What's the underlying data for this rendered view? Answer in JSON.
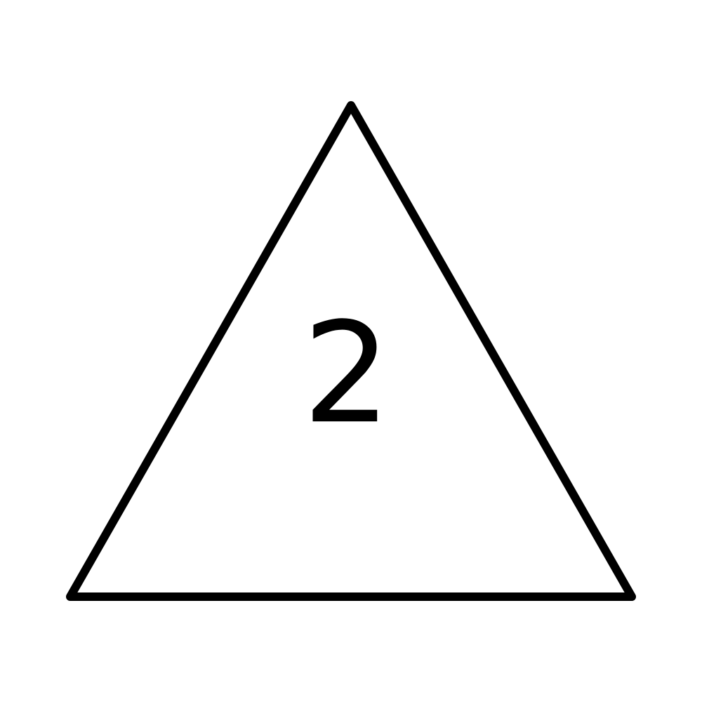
{
  "diagram": {
    "shape": "triangle",
    "label": "2",
    "stroke_color": "#000000",
    "fill_color": "#ffffff"
  }
}
